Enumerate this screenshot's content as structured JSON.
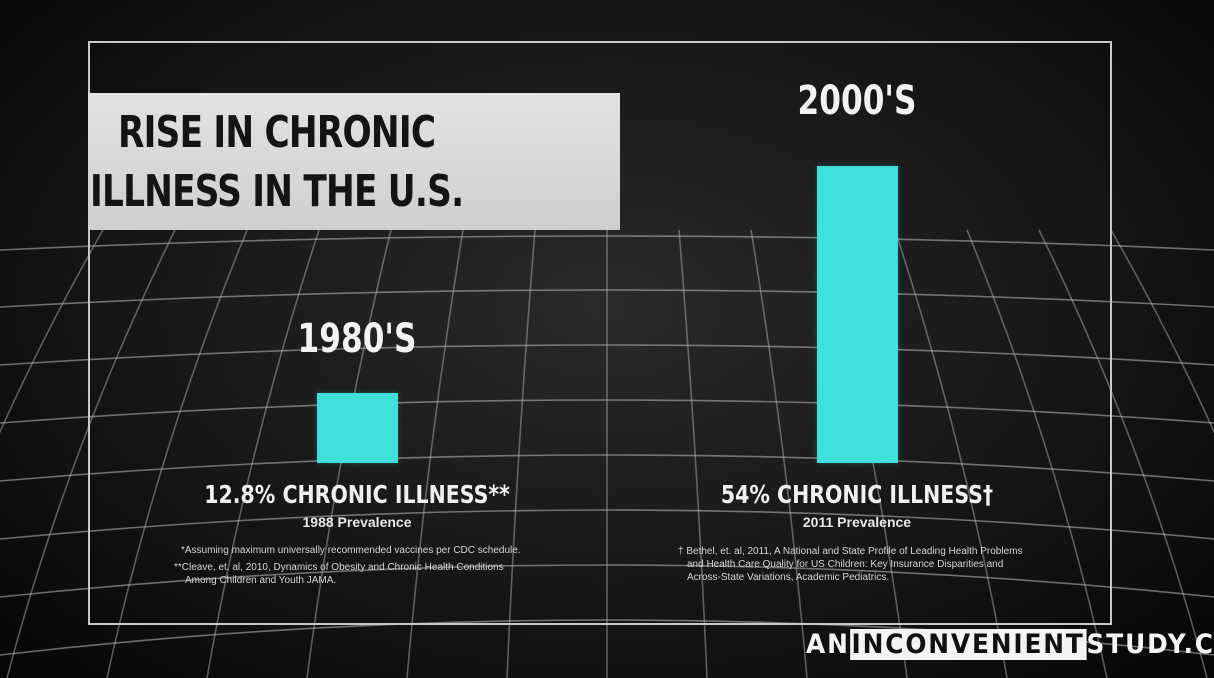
{
  "title": {
    "line1": "RISE IN CHRONIC",
    "line2": "ILLNESS IN THE U.S."
  },
  "chart_data": {
    "type": "bar",
    "categories": [
      "1980'S",
      "2000'S"
    ],
    "values": [
      12.8,
      54
    ],
    "unit": "%",
    "ylim": [
      0,
      60
    ],
    "value_labels": [
      "12.8% CHRONIC ILLNESS**",
      "54% CHRONIC ILLNESS†"
    ],
    "sub_labels": [
      "1988 Prevalence",
      "2011 Prevalence"
    ],
    "bar_color": "#3fe0dc",
    "grid": true
  },
  "footnotes": {
    "left": [
      "*Assuming maximum universally recommended vaccines per CDC schedule.",
      "**Cleave, et. al, 2010, Dynamics of Obesity and Chronic Health Conditions",
      "Among Children and Youth JAMA."
    ],
    "right": [
      "† Bethel, et. al, 2011, A National and State Profile of Leading Health Problems",
      "and Health Care Quality for US Children: Key Insurance Disparities and",
      "Across-State Variations, Academic Pediatrics."
    ]
  },
  "brand": {
    "prefix": "AN",
    "highlight": "INCONVENIENT",
    "suffix": "STUDY.COM"
  },
  "colors": {
    "accent": "#3fe0dc",
    "title_box": "#d8d8d8",
    "background": "#161616"
  }
}
